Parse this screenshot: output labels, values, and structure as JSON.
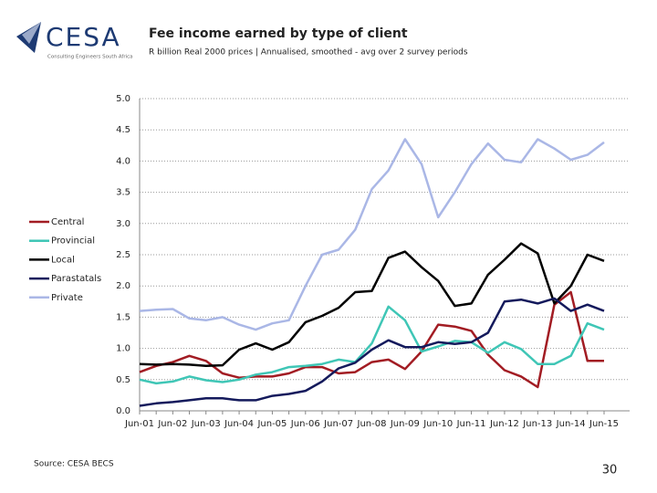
{
  "header": {
    "logo_name": "CESA",
    "logo_tagline": "Consulting Engineers South Africa"
  },
  "chart_data": {
    "type": "line",
    "title": "Fee income earned by type of client",
    "subtitle": "R billion Real 2000 prices | Annualised, smoothed - avg over 2 survey periods",
    "categories": [
      "Jun-01",
      null,
      "Jun-02",
      null,
      "Jun-03",
      null,
      "Jun-04",
      null,
      "Jun-05",
      null,
      "Jun-06",
      null,
      "Jun-07",
      null,
      "Jun-08",
      null,
      "Jun-09",
      null,
      "Jun-10",
      null,
      "Jun-11",
      null,
      "Jun-12",
      null,
      "Jun-13",
      null,
      "Jun-14",
      null,
      "Jun-15"
    ],
    "series": [
      {
        "name": "Central",
        "color": "#a21c23",
        "values": [
          0.62,
          0.72,
          0.78,
          0.88,
          0.8,
          0.6,
          0.53,
          0.55,
          0.55,
          0.6,
          0.7,
          0.7,
          0.6,
          0.62,
          0.78,
          0.82,
          0.67,
          0.95,
          1.38,
          1.35,
          1.28,
          0.9,
          0.65,
          0.55,
          0.38,
          1.7,
          1.9,
          0.8,
          0.8
        ]
      },
      {
        "name": "Provincial",
        "color": "#3fc6b6",
        "values": [
          0.5,
          0.44,
          0.47,
          0.55,
          0.49,
          0.46,
          0.5,
          0.58,
          0.62,
          0.7,
          0.72,
          0.75,
          0.82,
          0.78,
          1.08,
          1.67,
          1.45,
          0.95,
          1.03,
          1.12,
          1.1,
          0.93,
          1.1,
          0.99,
          0.75,
          0.75,
          0.88,
          1.4,
          1.3
        ]
      },
      {
        "name": "Local",
        "color": "#000000",
        "values": [
          0.75,
          0.74,
          0.75,
          0.74,
          0.72,
          0.73,
          0.98,
          1.08,
          0.98,
          1.1,
          1.42,
          1.52,
          1.65,
          1.9,
          1.92,
          2.45,
          2.55,
          2.3,
          2.08,
          1.68,
          1.72,
          2.18,
          2.42,
          2.68,
          2.52,
          1.72,
          2.0,
          2.5,
          2.4
        ]
      },
      {
        "name": "Parastatals",
        "color": "#141a5c",
        "values": [
          0.08,
          0.12,
          0.14,
          0.17,
          0.2,
          0.2,
          0.17,
          0.17,
          0.24,
          0.27,
          0.32,
          0.47,
          0.68,
          0.77,
          0.98,
          1.13,
          1.02,
          1.02,
          1.1,
          1.07,
          1.1,
          1.25,
          1.75,
          1.78,
          1.72,
          1.8,
          1.6,
          1.7,
          1.6
        ]
      },
      {
        "name": "Private",
        "color": "#aab7e6",
        "values": [
          1.6,
          1.62,
          1.63,
          1.48,
          1.45,
          1.5,
          1.38,
          1.3,
          1.4,
          1.45,
          2.0,
          2.5,
          2.58,
          2.9,
          3.55,
          3.85,
          4.35,
          3.95,
          3.1,
          3.5,
          3.95,
          4.28,
          4.02,
          3.98,
          4.35,
          4.2,
          4.02,
          4.1,
          4.3
        ]
      }
    ],
    "ylim": [
      0,
      5
    ],
    "yticks": [
      {
        "value": 0,
        "label": "0.0"
      },
      {
        "value": 0.5,
        "label": "0.5"
      },
      {
        "value": 1,
        "label": "1.0"
      },
      {
        "value": 1.5,
        "label": "1.5"
      },
      {
        "value": 2,
        "label": "2.0"
      },
      {
        "value": 2.5,
        "label": "2.5"
      },
      {
        "value": 3,
        "label": "3.0"
      },
      {
        "value": 3.5,
        "label": "3.5"
      },
      {
        "value": 4,
        "label": "4.0"
      },
      {
        "value": 4.5,
        "label": "4.5"
      },
      {
        "value": 5,
        "label": "5.0"
      }
    ],
    "grid": true,
    "legend": "left"
  },
  "footer": {
    "source": "Source: CESA BECS",
    "page": 30
  }
}
